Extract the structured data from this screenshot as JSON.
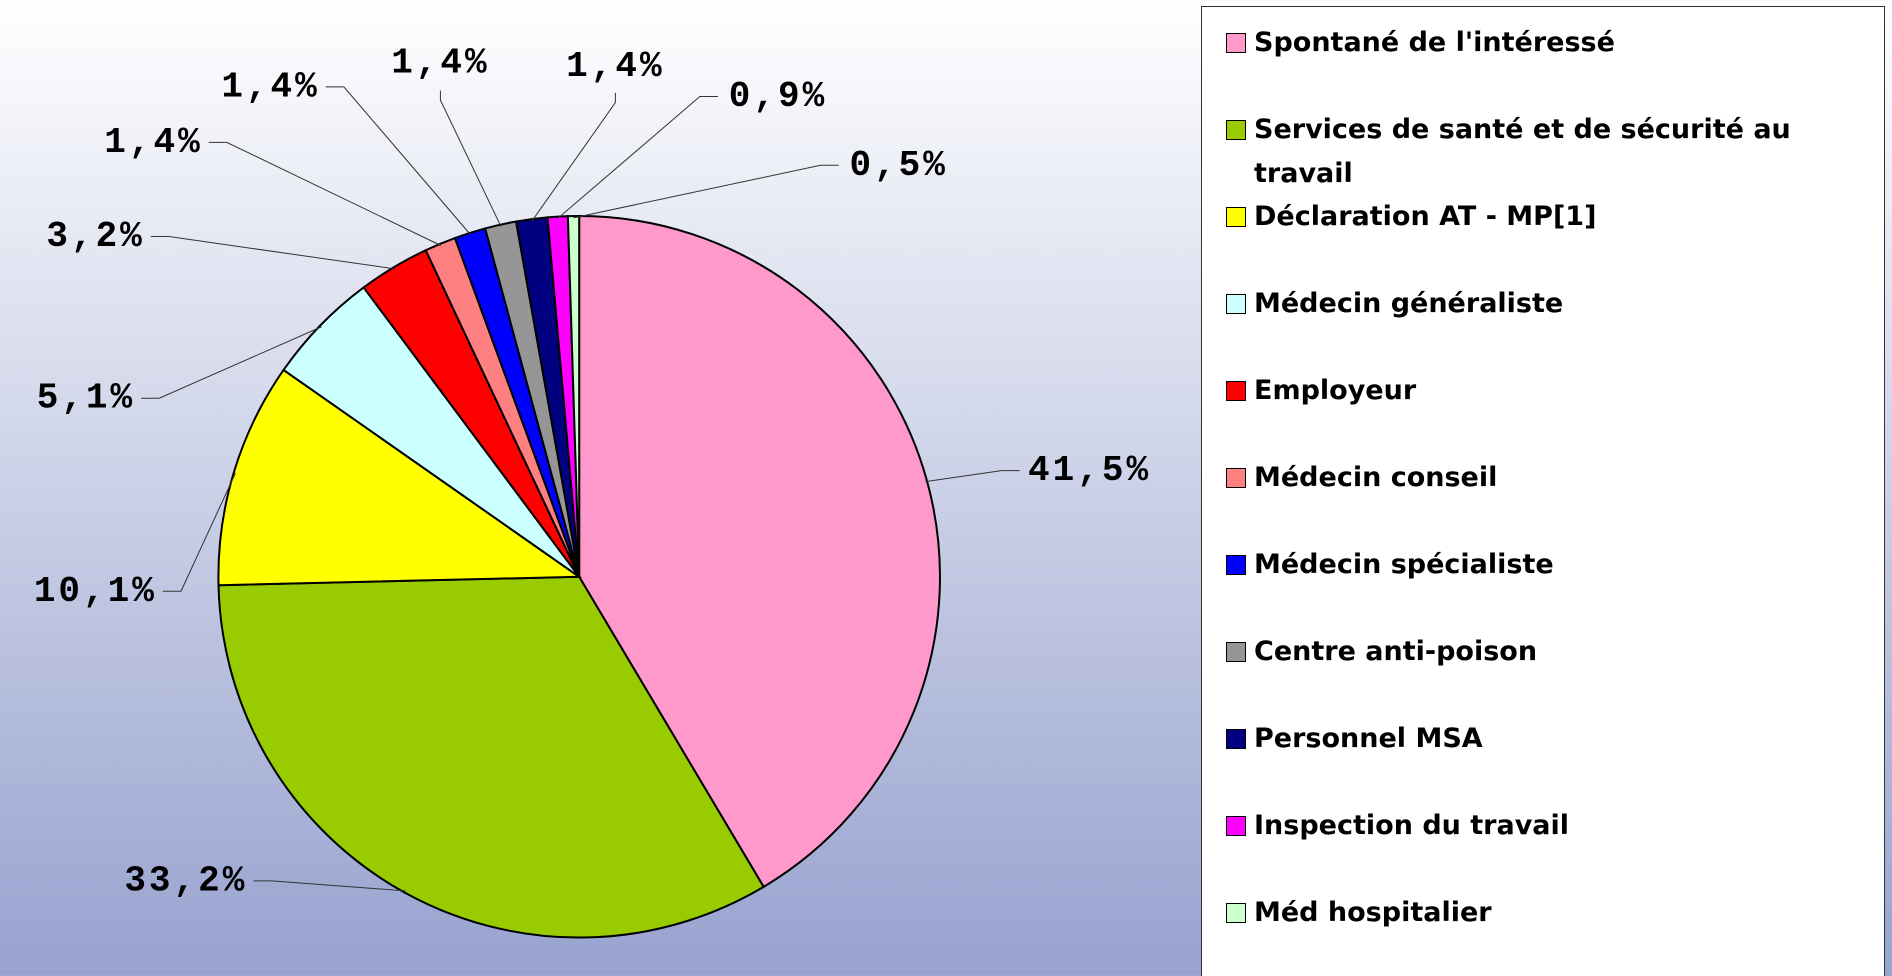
{
  "chart_data": {
    "type": "pie",
    "categories": [
      "Spontané de l'intéressé",
      "Services de santé et de sécurité au travail",
      "Déclaration AT - MP[1]",
      "Médecin généraliste",
      "Employeur",
      "Médecin conseil",
      "Médecin spécialiste",
      "Centre anti-poison",
      "Personnel MSA",
      "Inspection du travail",
      "Méd hospitalier"
    ],
    "values": [
      41.5,
      33.2,
      10.1,
      5.1,
      3.2,
      1.4,
      1.4,
      1.4,
      1.4,
      0.9,
      0.5
    ],
    "value_labels": [
      "41,5%",
      "33,2%",
      "10,1%",
      "5,1%",
      "3,2%",
      "1,4%",
      "1,4%",
      "1,4%",
      "1,4%",
      "0,9%",
      "0,5%"
    ],
    "colors": [
      "#ff99cc",
      "#99cc00",
      "#ffff00",
      "#ccffff",
      "#ff0000",
      "#ff8080",
      "#0000ff",
      "#969696",
      "#000080",
      "#ff00ff",
      "#ccffcc"
    ],
    "legend": "right"
  }
}
